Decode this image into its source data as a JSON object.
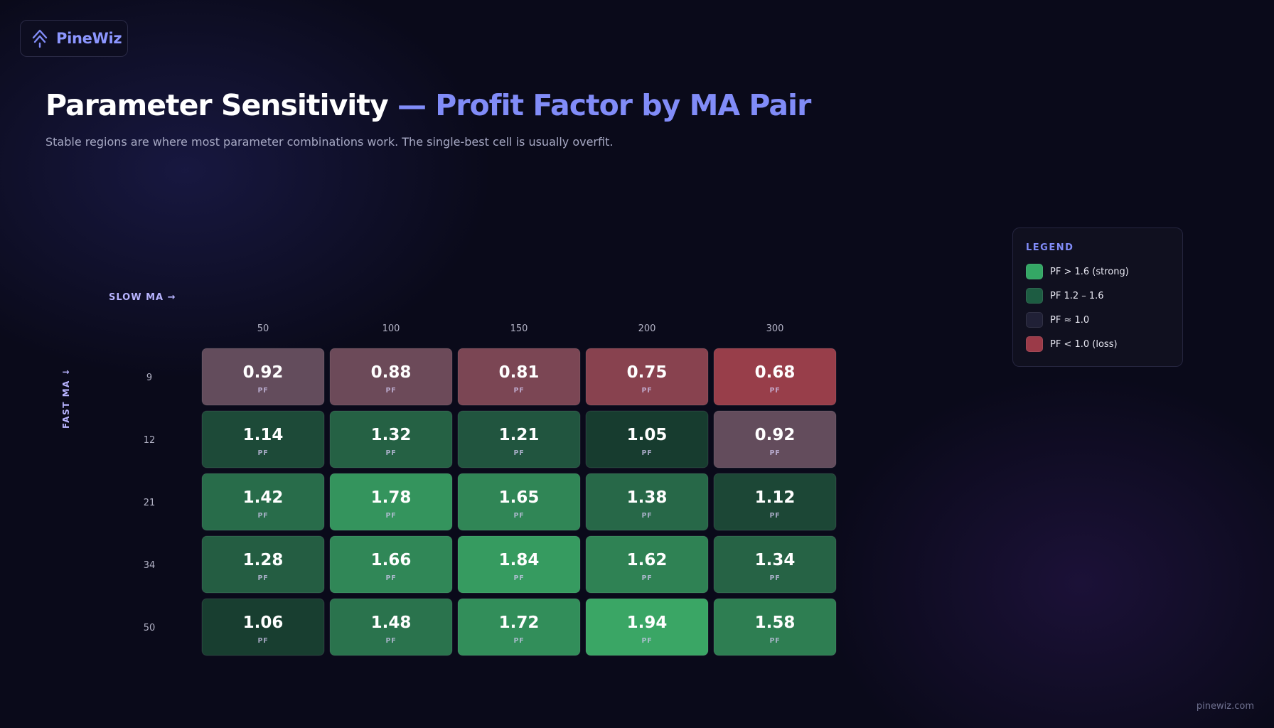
{
  "brand": {
    "name": "PineWiz",
    "icon": "pine-tree-arrow-icon"
  },
  "header": {
    "title_main": "Parameter Sensitivity ",
    "title_accent": "— Profit Factor by MA Pair",
    "subtitle": "Stable regions are where most parameter combinations work. The single-best cell is usually overfit."
  },
  "chart_data": {
    "type": "heatmap",
    "xlabel": "SLOW MA →",
    "ylabel": "FAST MA ↓",
    "x": [
      "50",
      "100",
      "150",
      "200",
      "300"
    ],
    "y": [
      "9",
      "12",
      "21",
      "34",
      "50"
    ],
    "cell_unit": "PF",
    "values": [
      [
        0.92,
        0.88,
        0.81,
        0.75,
        0.68
      ],
      [
        1.14,
        1.32,
        1.21,
        1.05,
        0.92
      ],
      [
        1.42,
        1.78,
        1.65,
        1.38,
        1.12
      ],
      [
        1.28,
        1.66,
        1.84,
        1.62,
        1.34
      ],
      [
        1.06,
        1.48,
        1.72,
        1.94,
        1.58
      ]
    ],
    "legend_placement": "top-right"
  },
  "legend": {
    "title": "LEGEND",
    "items": [
      {
        "label": "PF > 1.6 (strong)",
        "color": "#34a765"
      },
      {
        "label": "PF 1.2 – 1.6",
        "color": "#1d5c42"
      },
      {
        "label": "PF ≈ 1.0",
        "color": "#202036"
      },
      {
        "label": "PF < 1.0 (loss)",
        "color": "#9b3a48"
      }
    ]
  },
  "footer": {
    "site": "pinewiz.com"
  }
}
